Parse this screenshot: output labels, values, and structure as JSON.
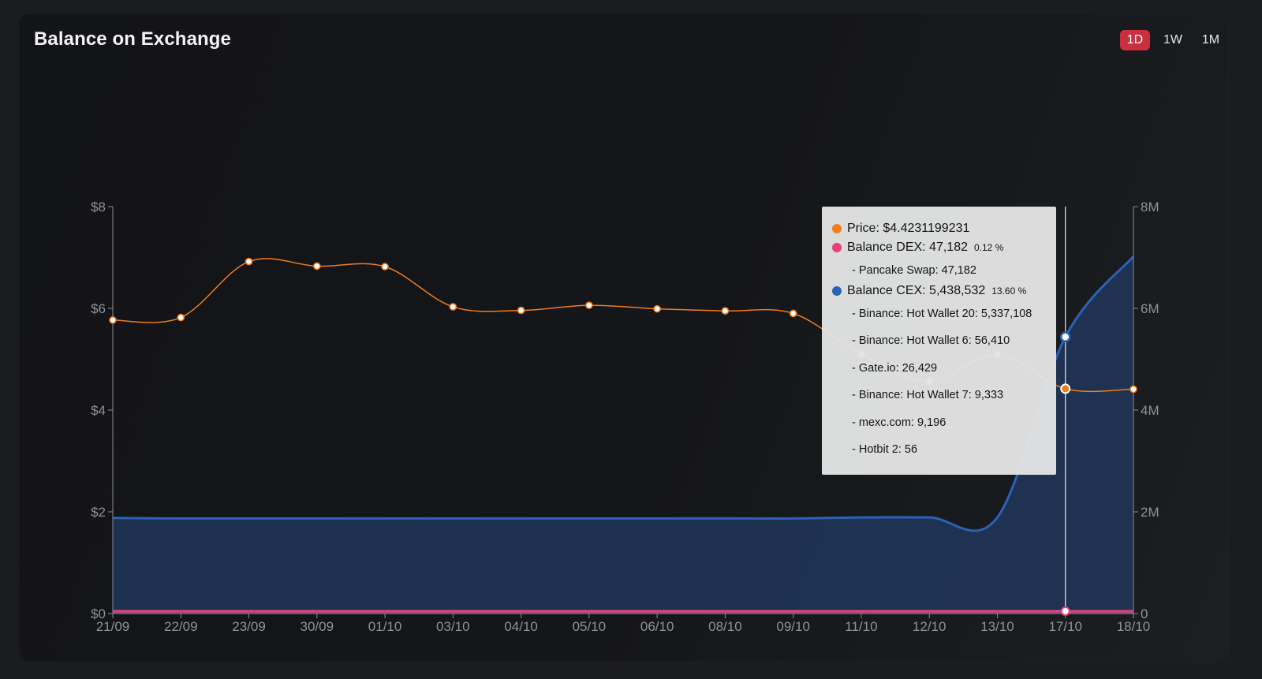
{
  "card": {
    "title": "Balance on Exchange",
    "periods": [
      "1D",
      "1W",
      "1M"
    ],
    "active_period": "1D"
  },
  "colors": {
    "price": "#f07c1e",
    "dex": "#ea3f7a",
    "cex": "#2b62b8",
    "cex_fill": "#203456",
    "active_button": "#c8303e"
  },
  "chart_data": {
    "type": "line",
    "categories": [
      "21/09",
      "22/09",
      "23/09",
      "30/09",
      "01/10",
      "03/10",
      "04/10",
      "05/10",
      "06/10",
      "08/10",
      "09/10",
      "11/10",
      "12/10",
      "13/10",
      "17/10",
      "18/10"
    ],
    "y_left": {
      "ticks": [
        "$0",
        "$2",
        "$4",
        "$6",
        "$8"
      ],
      "range": [
        0,
        8
      ]
    },
    "y_right": {
      "ticks": [
        "0",
        "2M",
        "4M",
        "6M",
        "8M"
      ],
      "range": [
        0,
        8000000
      ]
    },
    "series": [
      {
        "name": "Price",
        "axis": "left",
        "kind": "line",
        "values": [
          5.77,
          5.82,
          6.92,
          6.83,
          6.82,
          6.03,
          5.96,
          6.06,
          5.99,
          5.95,
          5.9,
          5.1,
          4.57,
          5.1,
          4.42,
          4.41
        ]
      },
      {
        "name": "Balance DEX",
        "axis": "right",
        "kind": "area",
        "values": [
          47182,
          47182,
          47182,
          47182,
          47182,
          47182,
          47182,
          47182,
          47182,
          47182,
          47182,
          47182,
          47182,
          47182,
          47182,
          47182
        ]
      },
      {
        "name": "Balance CEX",
        "axis": "right",
        "kind": "area",
        "values": [
          1880000,
          1870000,
          1870000,
          1870000,
          1870000,
          1870000,
          1870000,
          1870000,
          1870000,
          1870000,
          1870000,
          1890000,
          1890000,
          1890000,
          5438532,
          7020000
        ]
      }
    ],
    "hover_index": 14,
    "grid": false
  },
  "tooltip": {
    "price": {
      "label": "Price: $4.4231199231"
    },
    "dex": {
      "label": "Balance DEX: 47,182",
      "pct": "0.12 %",
      "items": [
        "- Pancake Swap: 47,182"
      ]
    },
    "cex": {
      "label": "Balance CEX: 5,438,532",
      "pct": "13.60 %",
      "items": [
        "- Binance: Hot Wallet 20: 5,337,108",
        "- Binance: Hot Wallet 6: 56,410",
        "- Gate.io: 26,429",
        "- Binance: Hot Wallet 7: 9,333",
        "- mexc.com: 9,196",
        "- Hotbit 2: 56"
      ]
    }
  }
}
